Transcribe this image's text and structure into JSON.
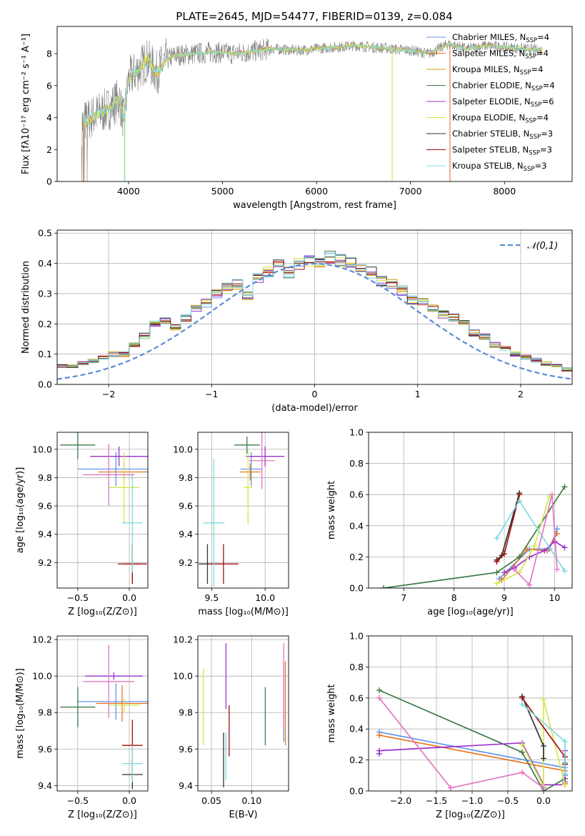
{
  "figure": {
    "title": "PLATE=2645, MJD=54477, FIBERID=0139, z=0.084"
  },
  "legend_entries": [
    {
      "text": "Chabrier MILES, N",
      "sub": "SSP",
      "tail": "=4",
      "color": "#6495ed"
    },
    {
      "text": "Salpeter MILES, N",
      "sub": "SSP",
      "tail": "=4",
      "color": "#e87722"
    },
    {
      "text": "Kroupa MILES, N",
      "sub": "SSP",
      "tail": "=4",
      "color": "#c8a000"
    },
    {
      "text": "Chabrier ELODIE, N",
      "sub": "SSP",
      "tail": "=4",
      "color": "#3d7a47"
    },
    {
      "text": "Salpeter ELODIE, N",
      "sub": "SSP",
      "tail": "=6",
      "color": "#9932cc"
    },
    {
      "text": "Kroupa ELODIE, N",
      "sub": "SSP",
      "tail": "=4",
      "color": "#d4e64a"
    },
    {
      "text": "Chabrier STELIB, N",
      "sub": "SSP",
      "tail": "=3",
      "color": "#333333"
    },
    {
      "text": "Salpeter STELIB, N",
      "sub": "SSP",
      "tail": "=3",
      "color": "#a01010"
    },
    {
      "text": "Kroupa STELIB, N",
      "sub": "SSP",
      "tail": "=3",
      "color": "#7fdbe0"
    }
  ],
  "chart_data": [
    {
      "type": "line",
      "panel": "spectrum",
      "xlabel": "wavelength [Angstrom, rest frame]",
      "ylabel": "Flux [fλ10⁻¹⁷ erg cm⁻² s⁻¹ A⁻¹]",
      "xlim": [
        3240,
        8720
      ],
      "ylim": [
        0,
        9.7
      ],
      "xticks": [
        "4000",
        "5000",
        "6000",
        "7000",
        "8000"
      ],
      "yticks": [
        "0",
        "2",
        "4",
        "6",
        "8"
      ],
      "x": [
        3500,
        3600,
        3700,
        3800,
        3900,
        3950,
        4000,
        4100,
        4200,
        4300,
        4400,
        4500,
        4700,
        4900,
        5100,
        5300,
        5500,
        5800,
        6000,
        6200,
        6400,
        6600,
        6800,
        7000,
        7200,
        7400,
        7600,
        7800,
        8000,
        8200,
        8400
      ],
      "series": [
        {
          "name": "data",
          "values": [
            3.6,
            4.0,
            4.3,
            4.6,
            5.2,
            3.8,
            6.4,
            7.0,
            7.6,
            6.8,
            7.6,
            7.9,
            8.0,
            8.1,
            8.0,
            8.1,
            8.3,
            8.2,
            8.3,
            8.4,
            8.5,
            8.4,
            8.3,
            8.2,
            8.0,
            8.6,
            8.3,
            8.5,
            8.4,
            8.3,
            8.2
          ]
        },
        {
          "name": "Chabrier MILES, NSSP=4",
          "values": [
            3.7,
            4.0,
            4.3,
            4.7,
            5.2,
            4.0,
            6.5,
            7.0,
            7.5,
            6.9,
            7.6,
            7.9,
            8.0,
            8.1,
            8.0,
            8.1,
            8.3,
            8.2,
            8.3,
            8.4,
            8.5,
            8.4,
            8.3,
            8.3,
            8.1,
            8.5,
            8.3,
            8.5,
            8.4,
            8.3,
            8.2
          ]
        }
      ]
    },
    {
      "type": "line",
      "panel": "residual-histogram",
      "xlabel": "(data-model)/error",
      "ylabel": "Normed distribution",
      "xlim": [
        -2.5,
        2.5
      ],
      "ylim": [
        0,
        0.51
      ],
      "xticks": [
        "−2",
        "−1",
        "0",
        "1",
        "2"
      ],
      "yticks": [
        "0.0",
        "0.1",
        "0.2",
        "0.3",
        "0.4",
        "0.5"
      ],
      "legend": "𝒩(0,1)",
      "bin_width": 0.1,
      "hist_values": [
        0.03,
        0.02,
        0.05,
        0.05,
        0.05,
        0.06,
        0.06,
        0.07,
        0.08,
        0.09,
        0.1,
        0.1,
        0.13,
        0.16,
        0.2,
        0.21,
        0.19,
        0.22,
        0.25,
        0.27,
        0.3,
        0.32,
        0.33,
        0.29,
        0.35,
        0.37,
        0.4,
        0.37,
        0.4,
        0.41,
        0.4,
        0.42,
        0.41,
        0.4,
        0.38,
        0.37,
        0.34,
        0.33,
        0.31,
        0.28,
        0.27,
        0.25,
        0.23,
        0.22,
        0.2,
        0.17,
        0.16,
        0.13,
        0.12,
        0.1,
        0.09,
        0.08,
        0.07,
        0.06,
        0.05,
        0.05,
        0.04,
        0.03,
        0.03,
        0.02
      ],
      "hist_start": -3.0,
      "gaussian_mu": 0,
      "gaussian_sigma": 1
    },
    {
      "type": "scatter",
      "panel": "age-vs-Z",
      "xlabel": "Z [log₁₀(Z/Z⊙)]",
      "ylabel": "age  [log₁₀(age/yr)]",
      "xlim": [
        -0.7,
        0.18
      ],
      "ylim": [
        9.02,
        10.12
      ],
      "xticks": [
        "−0.5",
        "0.0"
      ],
      "yticks": [
        "9.2",
        "9.4",
        "9.6",
        "9.8",
        "10.0"
      ],
      "points": [
        {
          "color": "#6495ed",
          "x": -0.13,
          "y": 9.86,
          "xerr": 0.37,
          "yerr": 0.12
        },
        {
          "color": "#e87722",
          "x": -0.05,
          "y": 9.84,
          "xerr": 0.25,
          "yerr": 0.06
        },
        {
          "color": "#3d7a47",
          "x": -0.5,
          "y": 10.03,
          "xerr": 0.17,
          "yerr": 0.1
        },
        {
          "color": "#9932cc",
          "x": -0.1,
          "y": 9.95,
          "xerr": 0.28,
          "yerr": 0.07
        },
        {
          "color": "#d4e64a",
          "x": -0.05,
          "y": 9.73,
          "xerr": 0.15,
          "yerr": 0.25
        },
        {
          "color": "#333333",
          "x": 0.03,
          "y": 9.19,
          "xerr": 0.08,
          "yerr": 0.14
        },
        {
          "color": "#a01010",
          "x": 0.03,
          "y": 9.19,
          "xerr": 0.14,
          "yerr": 0.14
        },
        {
          "color": "#7fdbe0",
          "x": 0.03,
          "y": 9.48,
          "xerr": 0.1,
          "yerr": 0.35
        },
        {
          "color": "#e377c2",
          "x": -0.2,
          "y": 9.82,
          "xerr": 0.25,
          "yerr": 0.22
        }
      ]
    },
    {
      "type": "scatter",
      "panel": "age-vs-mass",
      "xlabel": "mass [log₁₀(M/M⊙)]",
      "ylabel": "",
      "xlim": [
        9.37,
        10.22
      ],
      "ylim": [
        9.02,
        10.12
      ],
      "xticks": [
        "9.5",
        "10.0"
      ],
      "yticks": [
        "9.2",
        "9.4",
        "9.6",
        "9.8",
        "10.0"
      ],
      "points": [
        {
          "color": "#6495ed",
          "x": 9.87,
          "y": 9.86,
          "xerr": 0.1,
          "yerr": 0.12
        },
        {
          "color": "#e87722",
          "x": 9.86,
          "y": 9.84,
          "xerr": 0.1,
          "yerr": 0.06
        },
        {
          "color": "#3d7a47",
          "x": 9.83,
          "y": 10.03,
          "xerr": 0.12,
          "yerr": 0.06
        },
        {
          "color": "#9932cc",
          "x": 10.0,
          "y": 9.95,
          "xerr": 0.18,
          "yerr": 0.07
        },
        {
          "color": "#d4e64a",
          "x": 9.84,
          "y": 9.73,
          "xerr": 0.04,
          "yerr": 0.26
        },
        {
          "color": "#333333",
          "x": 9.46,
          "y": 9.19,
          "xerr": 0.08,
          "yerr": 0.14
        },
        {
          "color": "#a01010",
          "x": 9.61,
          "y": 9.19,
          "xerr": 0.14,
          "yerr": 0.14
        },
        {
          "color": "#7fdbe0",
          "x": 9.52,
          "y": 9.48,
          "xerr": 0.1,
          "yerr": 0.45
        },
        {
          "color": "#e377c2",
          "x": 9.97,
          "y": 9.92,
          "xerr": 0.12,
          "yerr": 0.2
        }
      ]
    },
    {
      "type": "line",
      "panel": "mass-weight-vs-age",
      "xlabel": "age  [log₁₀(age/yr)]",
      "ylabel": "mass weight",
      "xlim": [
        6.3,
        10.35
      ],
      "ylim": [
        0,
        1.0
      ],
      "xticks": [
        "7",
        "8",
        "9",
        "10"
      ],
      "yticks": [
        "0.0",
        "0.2",
        "0.4",
        "0.6",
        "0.8",
        "1.0"
      ],
      "series": [
        {
          "color": "#6495ed",
          "x": [
            8.9,
            9.5,
            9.9,
            10.05
          ],
          "y": [
            0.06,
            0.25,
            0.25,
            0.38
          ]
        },
        {
          "color": "#e87722",
          "x": [
            8.95,
            9.45,
            9.85,
            10.05
          ],
          "y": [
            0.05,
            0.25,
            0.24,
            0.35
          ]
        },
        {
          "color": "#3d7a47",
          "x": [
            6.6,
            8.85,
            9.3,
            10.2
          ],
          "y": [
            0.0,
            0.1,
            0.2,
            0.65
          ]
        },
        {
          "color": "#9932cc",
          "x": [
            9.0,
            9.2,
            9.5,
            9.8,
            10.0,
            10.2
          ],
          "y": [
            0.1,
            0.13,
            0.2,
            0.24,
            0.3,
            0.26
          ]
        },
        {
          "color": "#d4e64a",
          "x": [
            8.85,
            9.3,
            9.6,
            9.9
          ],
          "y": [
            0.03,
            0.1,
            0.27,
            0.59
          ]
        },
        {
          "color": "#333333",
          "x": [
            8.85,
            8.95,
            9.3
          ],
          "y": [
            0.18,
            0.21,
            0.61
          ]
        },
        {
          "color": "#a01010",
          "x": [
            8.85,
            9.0,
            9.3
          ],
          "y": [
            0.17,
            0.22,
            0.6
          ]
        },
        {
          "color": "#7fdbe0",
          "x": [
            8.85,
            9.3,
            10.2
          ],
          "y": [
            0.32,
            0.56,
            0.11
          ]
        },
        {
          "color": "#e377c2",
          "x": [
            9.2,
            9.5,
            9.95,
            10.05
          ],
          "y": [
            0.12,
            0.02,
            0.6,
            0.12
          ]
        }
      ]
    },
    {
      "type": "scatter",
      "panel": "mass-vs-Z",
      "xlabel": "Z [log₁₀(Z/Z⊙)]",
      "ylabel": "mass [log₁₀(M/M⊙)]",
      "xlim": [
        -0.7,
        0.18
      ],
      "ylim": [
        9.37,
        10.22
      ],
      "xticks": [
        "−0.5",
        "0.0"
      ],
      "yticks": [
        "9.4",
        "9.6",
        "9.8",
        "10.0",
        "10.2"
      ],
      "points": [
        {
          "color": "#6495ed",
          "x": -0.13,
          "y": 9.86,
          "xerr": 0.37,
          "yerr": 0.1
        },
        {
          "color": "#e87722",
          "x": -0.07,
          "y": 9.85,
          "xerr": 0.25,
          "yerr": 0.1
        },
        {
          "color": "#3d7a47",
          "x": -0.5,
          "y": 9.83,
          "xerr": 0.17,
          "yerr": 0.11
        },
        {
          "color": "#9932cc",
          "x": -0.15,
          "y": 10.0,
          "xerr": 0.28,
          "yerr": 0.02
        },
        {
          "color": "#d4e64a",
          "x": -0.05,
          "y": 9.84,
          "xerr": 0.15,
          "yerr": 0.04
        },
        {
          "color": "#333333",
          "x": 0.03,
          "y": 9.46,
          "xerr": 0.1,
          "yerr": 0.08
        },
        {
          "color": "#a01010",
          "x": 0.03,
          "y": 9.62,
          "xerr": 0.1,
          "yerr": 0.14
        },
        {
          "color": "#7fdbe0",
          "x": 0.03,
          "y": 9.52,
          "xerr": 0.1,
          "yerr": 0.1
        },
        {
          "color": "#e377c2",
          "x": -0.2,
          "y": 9.97,
          "xerr": 0.25,
          "yerr": 0.2
        }
      ]
    },
    {
      "type": "scatter",
      "panel": "mass-vs-EBV",
      "xlabel": "E(B-V)",
      "ylabel": "",
      "xlim": [
        0.033,
        0.146
      ],
      "ylim": [
        9.37,
        10.22
      ],
      "xticks": [
        "0.05",
        "0.10"
      ],
      "yticks": [
        "9.4",
        "9.6",
        "9.8",
        "10.0",
        "10.2"
      ],
      "points": [
        {
          "color": "#6495ed",
          "x": 0.14,
          "y": 9.86,
          "yerr": 0.22
        },
        {
          "color": "#e87722",
          "x": 0.142,
          "y": 9.85,
          "yerr": 0.23
        },
        {
          "color": "#3d7a47",
          "x": 0.117,
          "y": 9.78,
          "yerr": 0.16
        },
        {
          "color": "#9932cc",
          "x": 0.068,
          "y": 10.0,
          "yerr": 0.18
        },
        {
          "color": "#d4e64a",
          "x": 0.04,
          "y": 9.83,
          "yerr": 0.21
        },
        {
          "color": "#333333",
          "x": 0.065,
          "y": 9.54,
          "yerr": 0.15
        },
        {
          "color": "#a01010",
          "x": 0.072,
          "y": 9.7,
          "yerr": 0.14
        },
        {
          "color": "#7fdbe0",
          "x": 0.068,
          "y": 9.56,
          "yerr": 0.13
        },
        {
          "color": "#e377c2",
          "x": 0.14,
          "y": 9.95,
          "yerr": 0.23
        }
      ]
    },
    {
      "type": "line",
      "panel": "mass-weight-vs-Z",
      "xlabel": "Z [log₁₀(Z/Z⊙)]",
      "ylabel": "mass weight",
      "xlim": [
        -2.45,
        0.4
      ],
      "ylim": [
        0,
        1.0
      ],
      "xticks": [
        "−2.0",
        "−1.5",
        "−1.0",
        "−0.5",
        "0.0"
      ],
      "yticks": [
        "0.0",
        "0.2",
        "0.4",
        "0.6",
        "0.8",
        "1.0"
      ],
      "series": [
        {
          "color": "#6495ed",
          "x": [
            -2.3,
            0.3,
            0.3,
            0.3
          ],
          "y": [
            0.38,
            0.15,
            0.1,
            0.06
          ]
        },
        {
          "color": "#e87722",
          "x": [
            -2.3,
            0.3,
            0.3,
            0.3
          ],
          "y": [
            0.36,
            0.13,
            0.11,
            0.05
          ]
        },
        {
          "color": "#3d7a47",
          "x": [
            -2.3,
            -0.3,
            0.0,
            0.3,
            0.3
          ],
          "y": [
            0.65,
            0.25,
            0.0,
            0.08,
            0.18
          ]
        },
        {
          "color": "#9932cc",
          "x": [
            -2.3,
            -2.3,
            -0.3,
            0.0,
            0.3,
            0.3
          ],
          "y": [
            0.24,
            0.26,
            0.31,
            0.04,
            0.04,
            0.26
          ]
        },
        {
          "color": "#d4e64a",
          "x": [
            -0.3,
            0.0,
            0.0,
            0.3
          ],
          "y": [
            0.3,
            0.03,
            0.59,
            0.04
          ]
        },
        {
          "color": "#333333",
          "x": [
            -0.3,
            0.0,
            0.0
          ],
          "y": [
            0.61,
            0.29,
            0.21
          ]
        },
        {
          "color": "#a01010",
          "x": [
            -0.3,
            0.3,
            0.3
          ],
          "y": [
            0.6,
            0.22,
            0.17
          ]
        },
        {
          "color": "#7fdbe0",
          "x": [
            -0.3,
            0.3,
            0.3
          ],
          "y": [
            0.56,
            0.32,
            0.11
          ]
        },
        {
          "color": "#e377c2",
          "x": [
            -2.3,
            -1.3,
            -0.3,
            0.0
          ],
          "y": [
            0.6,
            0.02,
            0.12,
            0.02
          ]
        }
      ]
    }
  ]
}
